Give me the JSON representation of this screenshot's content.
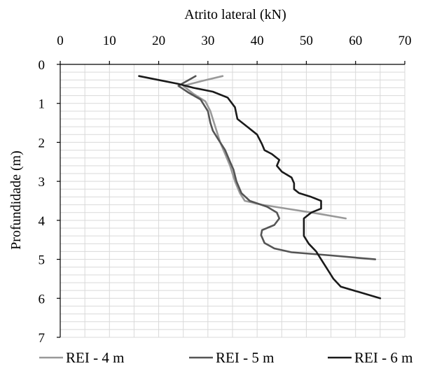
{
  "chart_data": {
    "type": "line",
    "xlabel": "Atrito lateral (kN)",
    "ylabel": "Profundidade (m)",
    "xlim": [
      0,
      70
    ],
    "ylim": [
      0,
      7
    ],
    "y_inverted": true,
    "x_axis_position": "top",
    "x_ticks": [
      0,
      10,
      20,
      30,
      40,
      50,
      60,
      70
    ],
    "y_ticks": [
      0,
      1,
      2,
      3,
      4,
      5,
      6,
      7
    ],
    "x_minor_grid_step": 5,
    "y_minor_grid_step": 0.2,
    "grid": true,
    "legend_position": "bottom",
    "series": [
      {
        "name": "REI - 4 m",
        "color": "#999999",
        "points": [
          [
            33,
            0.3
          ],
          [
            29,
            0.42
          ],
          [
            25,
            0.55
          ],
          [
            27,
            0.75
          ],
          [
            29.5,
            0.95
          ],
          [
            30.5,
            1.2
          ],
          [
            31.5,
            1.6
          ],
          [
            32.5,
            2.0
          ],
          [
            33.5,
            2.3
          ],
          [
            34.5,
            2.6
          ],
          [
            35.5,
            3.0
          ],
          [
            36.5,
            3.3
          ],
          [
            37.5,
            3.5
          ],
          [
            41,
            3.6
          ],
          [
            46,
            3.7
          ],
          [
            52,
            3.82
          ],
          [
            58,
            3.95
          ]
        ]
      },
      {
        "name": "REI - 5 m",
        "color": "#555555",
        "points": [
          [
            27.5,
            0.3
          ],
          [
            24,
            0.55
          ],
          [
            26,
            0.72
          ],
          [
            28.5,
            0.9
          ],
          [
            30,
            1.2
          ],
          [
            30.5,
            1.5
          ],
          [
            31,
            1.7
          ],
          [
            32,
            1.9
          ],
          [
            33.5,
            2.2
          ],
          [
            34.5,
            2.5
          ],
          [
            35.2,
            2.7
          ],
          [
            35.8,
            3.0
          ],
          [
            36.8,
            3.3
          ],
          [
            38.5,
            3.5
          ],
          [
            42,
            3.65
          ],
          [
            44,
            3.8
          ],
          [
            44.5,
            3.95
          ],
          [
            43.5,
            4.12
          ],
          [
            41,
            4.25
          ],
          [
            40.8,
            4.38
          ],
          [
            41.5,
            4.58
          ],
          [
            43.5,
            4.72
          ],
          [
            47,
            4.82
          ],
          [
            55,
            4.9
          ],
          [
            64,
            5.0
          ]
        ]
      },
      {
        "name": "REI - 6 m",
        "color": "#1a1a1a",
        "points": [
          [
            16,
            0.3
          ],
          [
            20,
            0.4
          ],
          [
            24,
            0.5
          ],
          [
            27,
            0.6
          ],
          [
            31,
            0.7
          ],
          [
            34,
            0.85
          ],
          [
            35.5,
            1.1
          ],
          [
            36,
            1.4
          ],
          [
            38,
            1.6
          ],
          [
            40,
            1.8
          ],
          [
            41,
            2.05
          ],
          [
            41.5,
            2.2
          ],
          [
            43,
            2.3
          ],
          [
            44.5,
            2.45
          ],
          [
            44,
            2.6
          ],
          [
            45,
            2.75
          ],
          [
            47,
            2.9
          ],
          [
            47.5,
            3.05
          ],
          [
            47.5,
            3.2
          ],
          [
            48.5,
            3.3
          ],
          [
            51,
            3.4
          ],
          [
            53,
            3.5
          ],
          [
            53,
            3.7
          ],
          [
            51,
            3.8
          ],
          [
            49.5,
            3.95
          ],
          [
            49.5,
            4.15
          ],
          [
            49.5,
            4.4
          ],
          [
            50.5,
            4.6
          ],
          [
            52,
            4.8
          ],
          [
            53,
            5.0
          ],
          [
            54.5,
            5.3
          ],
          [
            55.5,
            5.5
          ],
          [
            57,
            5.7
          ],
          [
            61,
            5.85
          ],
          [
            65,
            6.0
          ]
        ]
      }
    ]
  }
}
